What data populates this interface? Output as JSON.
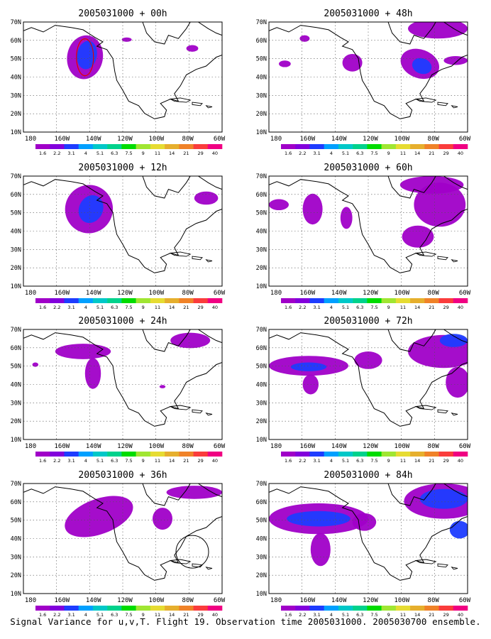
{
  "figure": {
    "caption": "Signal Variance for u,v,T. Flight 19. Observation time 2005031000. 2005030700 ensemble.",
    "lat_labels": [
      "70N",
      "60N",
      "50N",
      "40N",
      "30N",
      "20N",
      "10N"
    ],
    "lon_labels": [
      "180",
      "160W",
      "140W",
      "120W",
      "100W",
      "80W",
      "60W"
    ],
    "colorbar_labels": [
      "1.6",
      "2.2",
      "3.1",
      "4",
      "5.1",
      "6.3",
      "7.5",
      "9",
      "11",
      "14",
      "21",
      "29",
      "40"
    ],
    "colorbar_colors": [
      "#a000c8",
      "#8200dc",
      "#1e3cff",
      "#00a0ff",
      "#00c8c8",
      "#00d28c",
      "#00dc00",
      "#a0e632",
      "#e6dc32",
      "#e6af2d",
      "#f08228",
      "#fa3c3c",
      "#f00082"
    ],
    "panels": [
      {
        "title": "2005031000 + 00h"
      },
      {
        "title": "2005031000 + 48h"
      },
      {
        "title": "2005031000 + 12h"
      },
      {
        "title": "2005031000 + 60h"
      },
      {
        "title": "2005031000 + 24h"
      },
      {
        "title": "2005031000 + 72h"
      },
      {
        "title": "2005031000 + 36h"
      },
      {
        "title": "2005031000 + 84h"
      }
    ]
  }
}
